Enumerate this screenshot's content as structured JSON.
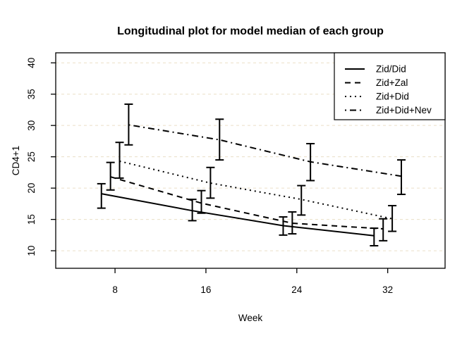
{
  "chart_data": {
    "type": "line",
    "title": "Longitudinal plot for model median of each group",
    "xlabel": "Week",
    "ylabel": "CD4+1",
    "xlim": [
      2.78,
      37.05
    ],
    "ylim": [
      7.2,
      41.6
    ],
    "x_ticks": [
      8,
      16,
      24,
      32
    ],
    "y_ticks": [
      10,
      15,
      20,
      25,
      30,
      35,
      40
    ],
    "grid": {
      "axis": "y",
      "style": "dashed",
      "color": "#EADFC6"
    },
    "line_color": "#000000",
    "legend": {
      "position": "top-right"
    },
    "series": [
      {
        "name": "Zid/Did",
        "linetype": "solid",
        "x": [
          6.8,
          14.8,
          22.8,
          30.8
        ],
        "median": [
          19.1,
          16.4,
          14.0,
          12.4
        ],
        "lower": [
          16.8,
          14.8,
          12.5,
          10.8
        ],
        "upper": [
          20.7,
          18.2,
          15.4,
          13.6
        ]
      },
      {
        "name": "Zid+Zal",
        "linetype": "dashed",
        "x": [
          7.6,
          15.6,
          23.6,
          31.6
        ],
        "median": [
          21.8,
          17.6,
          14.4,
          13.5
        ],
        "lower": [
          19.7,
          16.0,
          12.7,
          11.6
        ],
        "upper": [
          24.1,
          19.6,
          16.2,
          15.1
        ]
      },
      {
        "name": "Zid+Did",
        "linetype": "dotted",
        "x": [
          8.4,
          16.4,
          24.4,
          32.4
        ],
        "median": [
          24.3,
          20.8,
          18.2,
          15.1
        ],
        "lower": [
          21.6,
          18.4,
          15.7,
          13.1
        ],
        "upper": [
          27.3,
          23.3,
          20.4,
          17.2
        ]
      },
      {
        "name": "Zid+Did+Nev",
        "linetype": "dashdot",
        "x": [
          9.2,
          17.2,
          25.2,
          33.2
        ],
        "median": [
          30.1,
          27.7,
          24.2,
          21.9
        ],
        "lower": [
          26.9,
          24.5,
          21.2,
          19.0
        ],
        "upper": [
          33.4,
          31.0,
          27.1,
          24.5
        ]
      }
    ]
  }
}
